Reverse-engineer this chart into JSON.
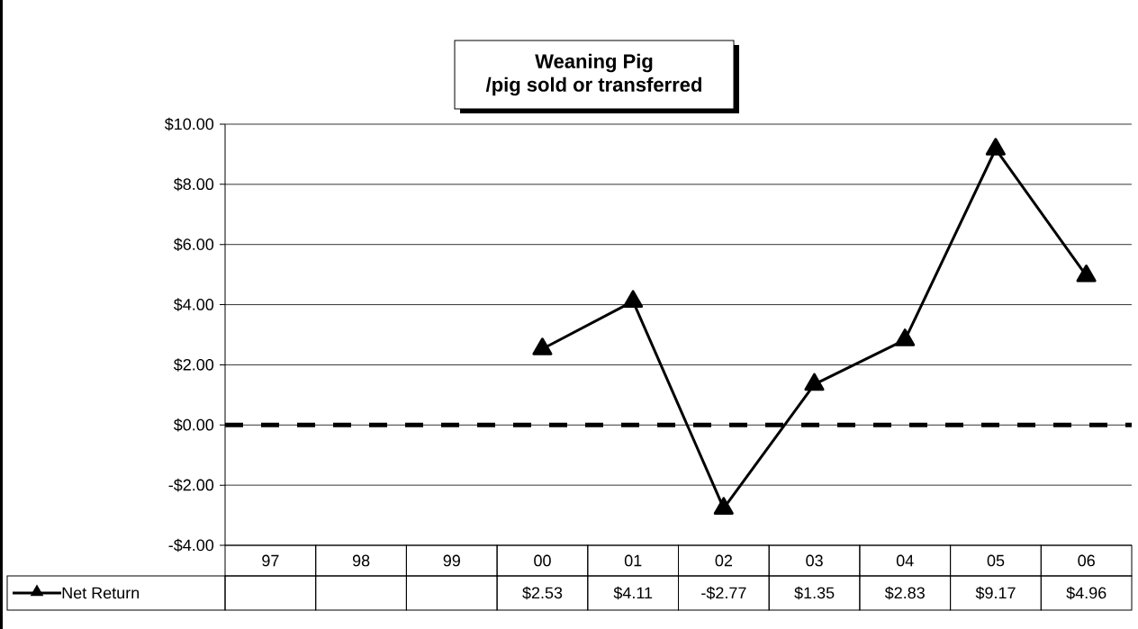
{
  "chart_data": {
    "type": "line",
    "title": "Weaning Pig",
    "subtitle": "/pig sold or transferred",
    "categories": [
      "97",
      "98",
      "99",
      "00",
      "01",
      "02",
      "03",
      "04",
      "05",
      "06"
    ],
    "series": [
      {
        "name": "Net Return",
        "color": "#000000",
        "values": [
          null,
          null,
          null,
          2.53,
          4.11,
          -2.77,
          1.35,
          2.83,
          9.17,
          4.96
        ],
        "value_labels": [
          null,
          null,
          null,
          "$2.53",
          "$4.11",
          "-$2.77",
          "$1.35",
          "$2.83",
          "$9.17",
          "$4.96"
        ]
      }
    ],
    "ylim": [
      -4,
      10
    ],
    "yticks": [
      {
        "value": -4,
        "label": "-$4.00"
      },
      {
        "value": -2,
        "label": "-$2.00"
      },
      {
        "value": 0,
        "label": "$0.00"
      },
      {
        "value": 2,
        "label": "$2.00"
      },
      {
        "value": 4,
        "label": "$4.00"
      },
      {
        "value": 6,
        "label": "$6.00"
      },
      {
        "value": 8,
        "label": "$8.00"
      },
      {
        "value": 10,
        "label": "$10.00"
      }
    ],
    "grid": "y",
    "marker": "triangle",
    "line_style": "solid",
    "legend": "bottom",
    "ref_lines": [
      {
        "axis": "y",
        "value": 0,
        "color": "#000000",
        "line_style": "dashed"
      }
    ]
  }
}
